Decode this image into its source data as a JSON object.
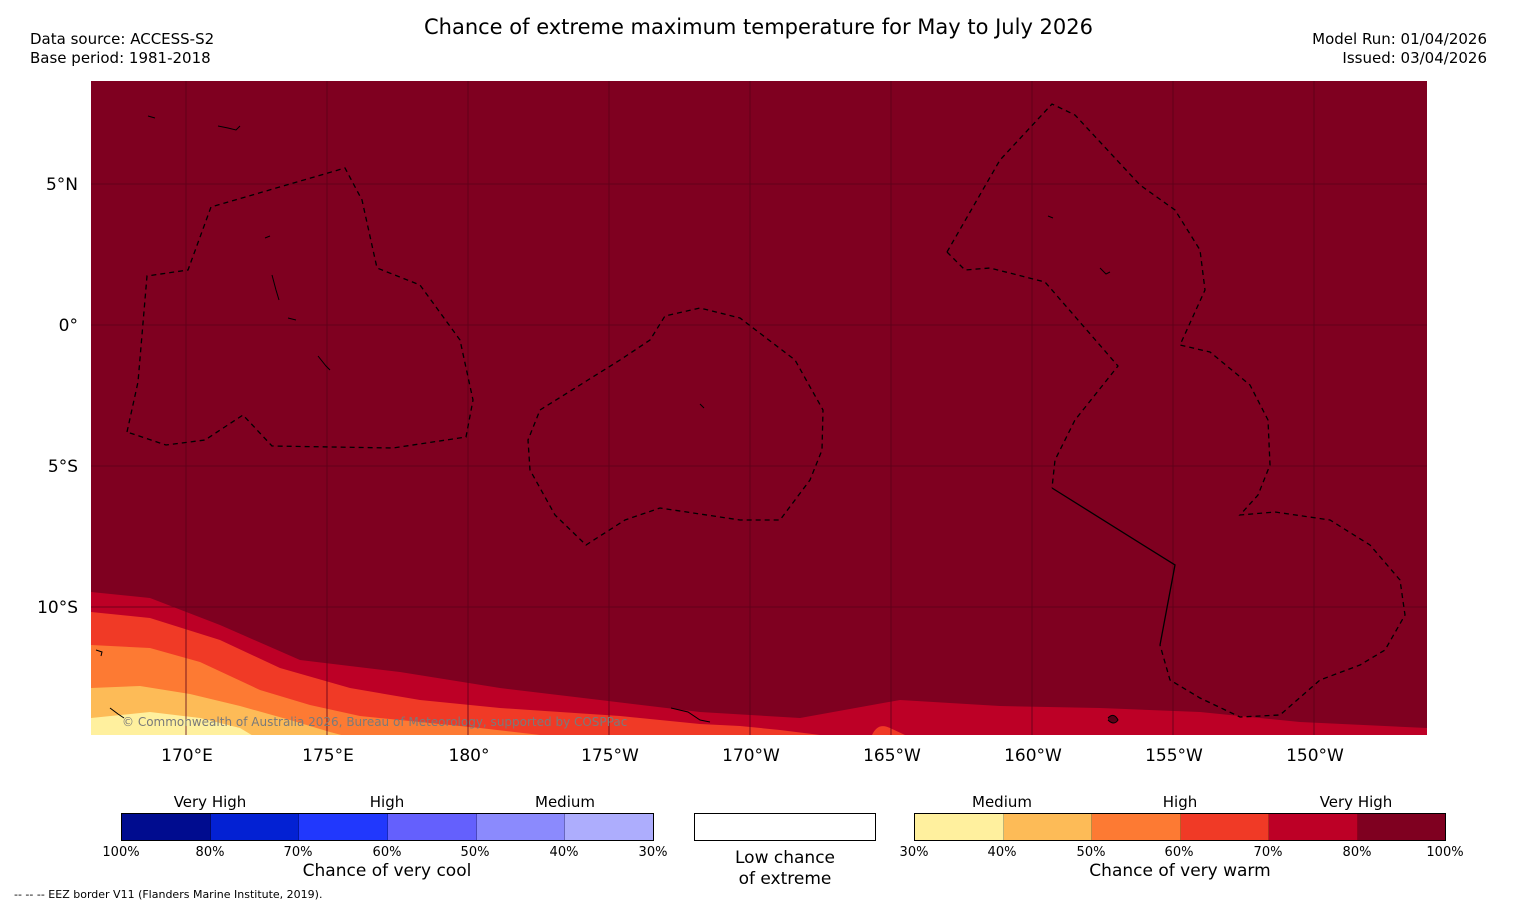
{
  "header": {
    "title": "Chance of extreme maximum temperature for May to July 2026",
    "data_source": "Data source: ACCESS-S2",
    "base_period": "Base period: 1981-2018",
    "model_run": "Model Run: 01/04/2026",
    "issued": "Issued: 03/04/2026"
  },
  "map": {
    "fill_color": "#7f0020",
    "grid_color": "#5a0018",
    "lat_labels": [
      "5°N",
      "0°",
      "5°S",
      "10°S"
    ],
    "lon_labels": [
      "170°E",
      "175°E",
      "180°",
      "175°W",
      "170°W",
      "165°W",
      "160°W",
      "155°W",
      "150°W"
    ],
    "copyright": "© Commonwealth of Australia 2026, Bureau of Meteorology, supported by COSPPac"
  },
  "cool_colorbar": {
    "colors": [
      "#000c8f",
      "#0321d3",
      "#2138fd",
      "#6460fd",
      "#8b8afd",
      "#adadfd"
    ],
    "ticks": [
      "100%",
      "80%",
      "70%",
      "60%",
      "50%",
      "40%",
      "30%"
    ],
    "categories": [
      "Very High",
      "High",
      "Medium"
    ],
    "title": "Chance of very cool"
  },
  "low_chance": {
    "line1": "Low chance",
    "line2": "of extreme"
  },
  "warm_colorbar": {
    "colors": [
      "#fff09e",
      "#fdbb57",
      "#fd7a33",
      "#f03a26",
      "#bd0026",
      "#7f0020"
    ],
    "ticks": [
      "30%",
      "40%",
      "50%",
      "60%",
      "70%",
      "80%",
      "100%"
    ],
    "categories": [
      "Medium",
      "High",
      "Very High"
    ],
    "title": "Chance of very warm"
  },
  "footnote": "-- -- -- EEZ border V11 (Flanders Marine Institute, 2019)."
}
